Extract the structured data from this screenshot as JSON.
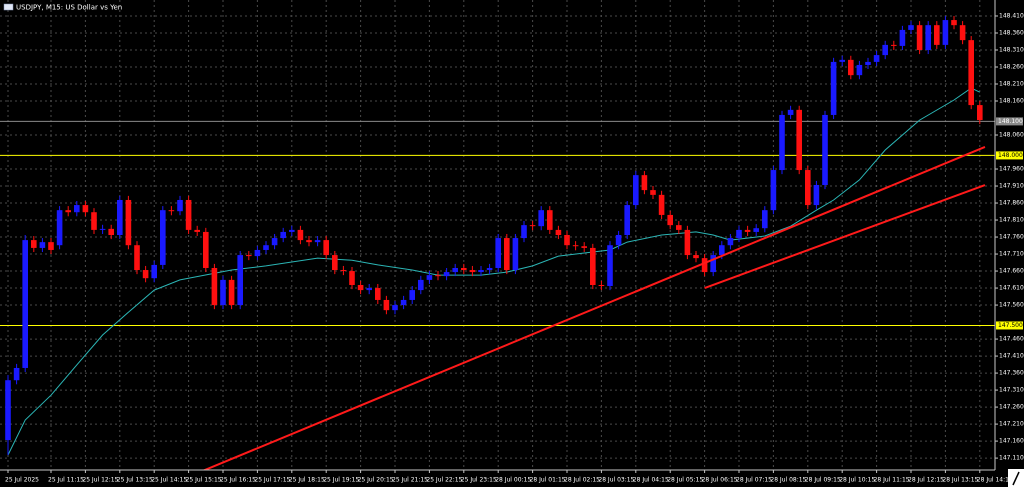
{
  "chart_data": {
    "type": "candlestick",
    "title": "USDJPY, M15:  US Dollar vs Yen",
    "bull_color": "#1a1aff",
    "bear_color": "#ff1010",
    "grid": true,
    "ylim": [
      147.075,
      148.457
    ],
    "yticks": [
      {
        "value": 148.41,
        "label": "148.410"
      },
      {
        "value": 148.36,
        "label": "148.360"
      },
      {
        "value": 148.31,
        "label": "148.310"
      },
      {
        "value": 148.26,
        "label": "148.260"
      },
      {
        "value": 148.21,
        "label": "148.210"
      },
      {
        "value": 148.16,
        "label": "148.160"
      },
      {
        "value": 148.06,
        "label": "148.060"
      },
      {
        "value": 147.96,
        "label": "147.960"
      },
      {
        "value": 147.91,
        "label": "147.910"
      },
      {
        "value": 147.86,
        "label": "147.860"
      },
      {
        "value": 147.81,
        "label": "147.810"
      },
      {
        "value": 147.76,
        "label": "147.760"
      },
      {
        "value": 147.71,
        "label": "147.710"
      },
      {
        "value": 147.66,
        "label": "147.660"
      },
      {
        "value": 147.61,
        "label": "147.610"
      },
      {
        "value": 147.56,
        "label": "147.560"
      },
      {
        "value": 147.46,
        "label": "147.460"
      },
      {
        "value": 147.41,
        "label": "147.410"
      },
      {
        "value": 147.36,
        "label": "147.360"
      },
      {
        "value": 147.31,
        "label": "147.310"
      },
      {
        "value": 147.26,
        "label": "147.260"
      },
      {
        "value": 147.21,
        "label": "147.210"
      },
      {
        "value": 147.16,
        "label": "147.160"
      },
      {
        "value": 147.11,
        "label": "147.110"
      }
    ],
    "categories": [
      "25 Jul 2025",
      null,
      null,
      null,
      null,
      "25 Jul 11:15",
      null,
      null,
      null,
      "25 Jul 12:15",
      null,
      null,
      null,
      "25 Jul 13:15",
      null,
      null,
      null,
      "25 Jul 14:15",
      null,
      null,
      null,
      "25 Jul 15:15",
      null,
      null,
      null,
      "25 Jul 16:15",
      null,
      null,
      null,
      "25 Jul 17:15",
      null,
      null,
      null,
      "25 Jul 18:15",
      null,
      null,
      null,
      "25 Jul 19:15",
      null,
      null,
      null,
      "25 Jul 20:15",
      null,
      null,
      null,
      "25 Jul 21:15",
      null,
      null,
      null,
      "25 Jul 22:15",
      null,
      null,
      null,
      "25 Jul 23:15",
      null,
      null,
      null,
      "28 Jul 00:15",
      null,
      null,
      null,
      "28 Jul 01:15",
      null,
      null,
      null,
      "28 Jul 02:15",
      null,
      null,
      null,
      "28 Jul 03:15",
      null,
      null,
      null,
      "28 Jul 04:15",
      null,
      null,
      null,
      "28 Jul 05:15",
      null,
      null,
      null,
      "28 Jul 06:15",
      null,
      null,
      null,
      "28 Jul 07:15",
      null,
      null,
      null,
      "28 Jul 08:15",
      null,
      null,
      null,
      "28 Jul 09:15",
      null,
      null,
      null,
      "28 Jul 10:15",
      null,
      null,
      null,
      "28 Jul 11:15",
      null,
      null,
      null,
      "28 Jul 12:15",
      null,
      null,
      null,
      "28 Jul 13:15",
      null,
      null,
      null,
      "28 Jul 14:15"
    ],
    "ohlc": [
      [
        147.163,
        147.354,
        147.119,
        147.339
      ],
      [
        147.339,
        147.387,
        147.327,
        147.375
      ],
      [
        147.375,
        147.766,
        147.363,
        147.751
      ],
      [
        147.751,
        147.763,
        147.716,
        147.728
      ],
      [
        147.728,
        147.757,
        147.716,
        147.745
      ],
      [
        147.745,
        147.757,
        147.71,
        147.722
      ],
      [
        147.736,
        147.851,
        147.724,
        147.839
      ],
      [
        147.839,
        147.851,
        147.821,
        147.833
      ],
      [
        147.833,
        147.866,
        147.821,
        147.854
      ],
      [
        147.854,
        147.866,
        147.821,
        147.833
      ],
      [
        147.833,
        147.845,
        147.769,
        147.781
      ],
      [
        147.781,
        147.796,
        147.769,
        147.784
      ],
      [
        147.784,
        147.796,
        147.754,
        147.766
      ],
      [
        147.766,
        147.881,
        147.754,
        147.869
      ],
      [
        147.869,
        147.881,
        147.724,
        147.736
      ],
      [
        147.736,
        147.748,
        147.651,
        147.663
      ],
      [
        147.663,
        147.675,
        147.627,
        147.639
      ],
      [
        147.639,
        147.69,
        147.627,
        147.678
      ],
      [
        147.678,
        147.851,
        147.666,
        147.839
      ],
      [
        147.839,
        147.851,
        147.824,
        147.836
      ],
      [
        147.836,
        147.881,
        147.824,
        147.869
      ],
      [
        147.869,
        147.881,
        147.769,
        147.781
      ],
      [
        147.781,
        147.793,
        147.763,
        147.775
      ],
      [
        147.775,
        147.787,
        147.657,
        147.669
      ],
      [
        147.669,
        147.681,
        147.548,
        147.56
      ],
      [
        147.56,
        147.646,
        147.548,
        147.634
      ],
      [
        147.634,
        147.646,
        147.548,
        147.56
      ],
      [
        147.56,
        147.719,
        147.548,
        147.707
      ],
      [
        147.707,
        147.719,
        147.692,
        147.704
      ],
      [
        147.704,
        147.734,
        147.692,
        147.722
      ],
      [
        147.722,
        147.748,
        147.71,
        147.736
      ],
      [
        147.736,
        147.769,
        147.724,
        147.757
      ],
      [
        147.757,
        147.787,
        147.745,
        147.775
      ],
      [
        147.775,
        147.793,
        147.763,
        147.781
      ],
      [
        147.781,
        147.793,
        147.739,
        147.751
      ],
      [
        147.751,
        147.763,
        147.733,
        147.745
      ],
      [
        147.745,
        147.763,
        147.733,
        147.751
      ],
      [
        147.751,
        147.763,
        147.695,
        147.707
      ],
      [
        147.707,
        147.719,
        147.651,
        147.663
      ],
      [
        147.663,
        147.675,
        147.648,
        147.66
      ],
      [
        147.66,
        147.672,
        147.607,
        147.619
      ],
      [
        147.619,
        147.631,
        147.592,
        147.604
      ],
      [
        147.604,
        147.622,
        147.592,
        147.61
      ],
      [
        147.61,
        147.622,
        147.563,
        147.575
      ],
      [
        147.575,
        147.587,
        147.533,
        147.545
      ],
      [
        147.545,
        147.572,
        147.533,
        147.56
      ],
      [
        147.56,
        147.587,
        147.548,
        147.575
      ],
      [
        147.575,
        147.616,
        147.563,
        147.604
      ],
      [
        147.604,
        147.646,
        147.592,
        147.634
      ],
      [
        147.634,
        147.66,
        147.622,
        147.648
      ],
      [
        147.648,
        147.66,
        147.633,
        147.645
      ],
      [
        147.645,
        147.669,
        147.633,
        147.657
      ],
      [
        147.657,
        147.681,
        147.645,
        147.669
      ],
      [
        147.669,
        147.681,
        147.651,
        147.663
      ],
      [
        147.663,
        147.675,
        147.645,
        147.657
      ],
      [
        147.657,
        147.675,
        147.645,
        147.663
      ],
      [
        147.663,
        147.681,
        147.651,
        147.669
      ],
      [
        147.669,
        147.769,
        147.657,
        147.757
      ],
      [
        147.757,
        147.769,
        147.651,
        147.663
      ],
      [
        147.663,
        147.769,
        147.651,
        147.757
      ],
      [
        147.757,
        147.807,
        147.745,
        147.795
      ],
      [
        147.795,
        147.807,
        147.78,
        147.792
      ],
      [
        147.792,
        147.851,
        147.78,
        147.839
      ],
      [
        147.839,
        147.851,
        147.769,
        147.781
      ],
      [
        147.781,
        147.793,
        147.754,
        147.766
      ],
      [
        147.766,
        147.778,
        147.724,
        147.736
      ],
      [
        147.736,
        147.748,
        147.721,
        147.733
      ],
      [
        147.733,
        147.745,
        147.716,
        147.728
      ],
      [
        147.728,
        147.74,
        147.607,
        147.619
      ],
      [
        147.619,
        147.631,
        147.604,
        147.616
      ],
      [
        147.616,
        147.748,
        147.604,
        147.736
      ],
      [
        147.736,
        147.778,
        147.724,
        147.766
      ],
      [
        147.766,
        147.866,
        147.754,
        147.854
      ],
      [
        147.854,
        147.954,
        147.842,
        147.942
      ],
      [
        147.942,
        147.954,
        147.886,
        147.898
      ],
      [
        147.898,
        147.91,
        147.872,
        147.884
      ],
      [
        147.884,
        147.896,
        147.813,
        147.825
      ],
      [
        147.825,
        147.837,
        147.783,
        147.795
      ],
      [
        147.795,
        147.807,
        147.769,
        147.781
      ],
      [
        147.781,
        147.793,
        147.695,
        147.707
      ],
      [
        147.707,
        147.719,
        147.686,
        147.698
      ],
      [
        147.698,
        147.71,
        147.645,
        147.657
      ],
      [
        147.657,
        147.719,
        147.645,
        147.707
      ],
      [
        147.707,
        147.748,
        147.695,
        147.736
      ],
      [
        147.736,
        147.769,
        147.724,
        147.757
      ],
      [
        147.757,
        147.793,
        147.745,
        147.781
      ],
      [
        147.781,
        147.793,
        147.763,
        147.775
      ],
      [
        147.775,
        147.798,
        147.763,
        147.786
      ],
      [
        147.786,
        147.851,
        147.774,
        147.839
      ],
      [
        147.839,
        147.969,
        147.827,
        147.957
      ],
      [
        147.957,
        148.131,
        147.945,
        148.119
      ],
      [
        148.119,
        148.146,
        148.107,
        148.134
      ],
      [
        148.134,
        148.146,
        147.945,
        147.957
      ],
      [
        147.957,
        147.969,
        147.842,
        147.854
      ],
      [
        147.854,
        147.925,
        147.842,
        147.913
      ],
      [
        147.913,
        148.131,
        147.901,
        148.119
      ],
      [
        148.119,
        148.287,
        148.107,
        148.275
      ],
      [
        148.275,
        148.293,
        148.263,
        148.281
      ],
      [
        148.281,
        148.293,
        148.224,
        148.236
      ],
      [
        148.236,
        148.278,
        148.224,
        148.266
      ],
      [
        148.266,
        148.287,
        148.254,
        148.275
      ],
      [
        148.275,
        148.307,
        148.263,
        148.295
      ],
      [
        148.295,
        148.337,
        148.283,
        148.325
      ],
      [
        148.325,
        148.337,
        148.31,
        148.322
      ],
      [
        148.322,
        148.381,
        148.31,
        148.369
      ],
      [
        148.369,
        148.395,
        148.357,
        148.383
      ],
      [
        148.383,
        148.395,
        148.298,
        148.31
      ],
      [
        148.31,
        148.395,
        148.298,
        148.383
      ],
      [
        148.383,
        148.395,
        148.313,
        148.325
      ],
      [
        148.325,
        148.41,
        148.313,
        148.398
      ],
      [
        148.398,
        148.41,
        148.371,
        148.383
      ],
      [
        148.383,
        148.395,
        148.327,
        148.339
      ],
      [
        148.339,
        148.351,
        148.136,
        148.148
      ],
      [
        148.148,
        148.16,
        148.092,
        148.104
      ]
    ],
    "moving_average": {
      "color": "#2bb5b5",
      "x": [
        0,
        2,
        5,
        8,
        11,
        14,
        17,
        20,
        26,
        30,
        36,
        40,
        43,
        47,
        50,
        55,
        58,
        61,
        64,
        68,
        70,
        72,
        76,
        80,
        82,
        84,
        88,
        91,
        94,
        96,
        99,
        102,
        106,
        110,
        112,
        113
      ],
      "values": [
        147.119,
        147.222,
        147.295,
        147.384,
        147.472,
        147.539,
        147.604,
        147.634,
        147.663,
        147.675,
        147.698,
        147.692,
        147.678,
        147.663,
        147.648,
        147.648,
        147.657,
        147.675,
        147.704,
        147.716,
        147.722,
        147.745,
        147.766,
        147.775,
        147.766,
        147.751,
        147.763,
        147.792,
        147.839,
        147.869,
        147.928,
        148.016,
        148.104,
        148.163,
        148.198,
        148.186
      ]
    },
    "trendlines": [
      {
        "color": "#ff1a1a",
        "x": [
          20.6,
          113.6
        ],
        "values": [
          147.051,
          148.025
        ]
      },
      {
        "color": "#ff1a1a",
        "x": [
          81,
          113.6
        ],
        "values": [
          147.61,
          147.913
        ]
      }
    ],
    "levels": [
      {
        "value": 148.0,
        "label": "148.000",
        "color": "#ffff00"
      },
      {
        "value": 147.5,
        "label": "147.500",
        "color": "#ffff00"
      }
    ],
    "price_line": {
      "value": 148.1,
      "label": "148.100",
      "color": "#8a8a8a"
    }
  }
}
